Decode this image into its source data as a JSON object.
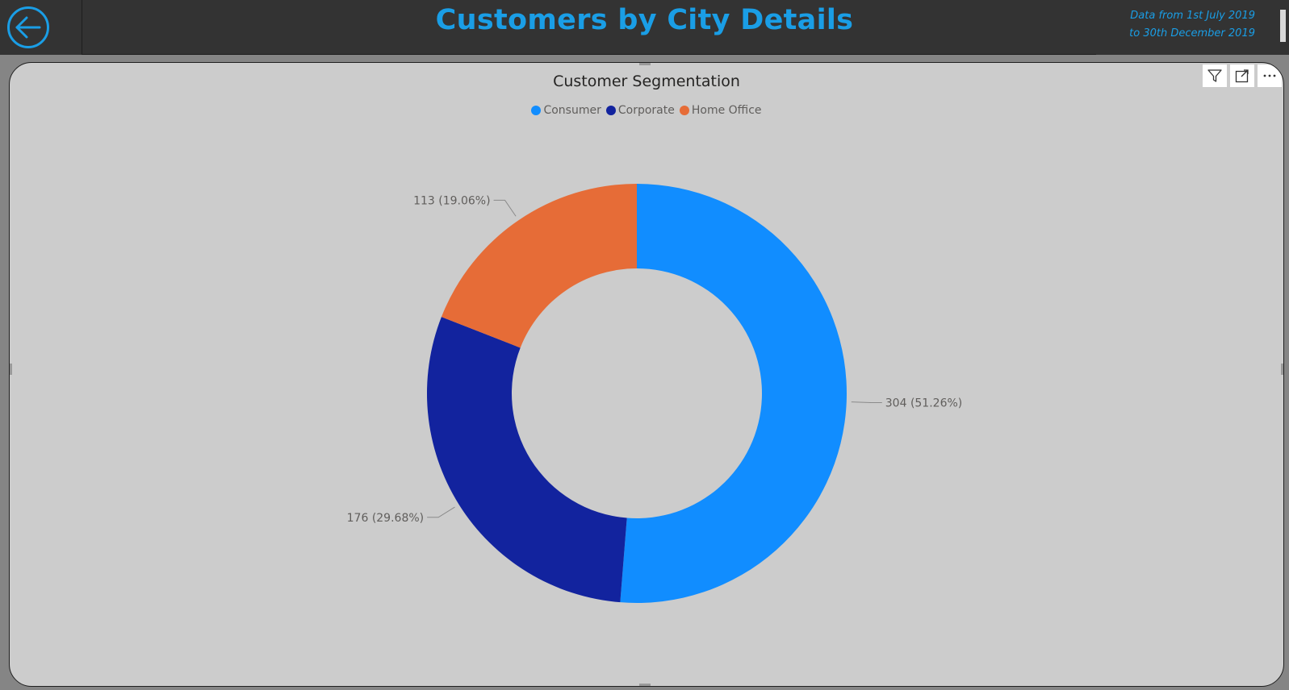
{
  "header": {
    "title": "Customers by City Details",
    "date_line1": "Data from 1st July 2019",
    "date_line2": "to 30th December 2019",
    "back_icon": "arrow-left-circle-icon",
    "accent_color": "#1a9ee6",
    "background_color": "#333333"
  },
  "visual_header": {
    "icons": [
      "filter-icon",
      "focus-mode-icon",
      "more-options-icon"
    ]
  },
  "chart_data": {
    "type": "pie",
    "variant": "donut",
    "title": "Customer Segmentation",
    "legend_position": "top-center",
    "categories": [
      "Consumer",
      "Corporate",
      "Home Office"
    ],
    "values": [
      304,
      176,
      113
    ],
    "percentages": [
      "51.26%",
      "29.68%",
      "19.06%"
    ],
    "colors": [
      "#118dff",
      "#12239e",
      "#e66c37"
    ],
    "labels": [
      "304 (51.26%)",
      "176 (29.68%)",
      "113 (19.06%)"
    ]
  }
}
